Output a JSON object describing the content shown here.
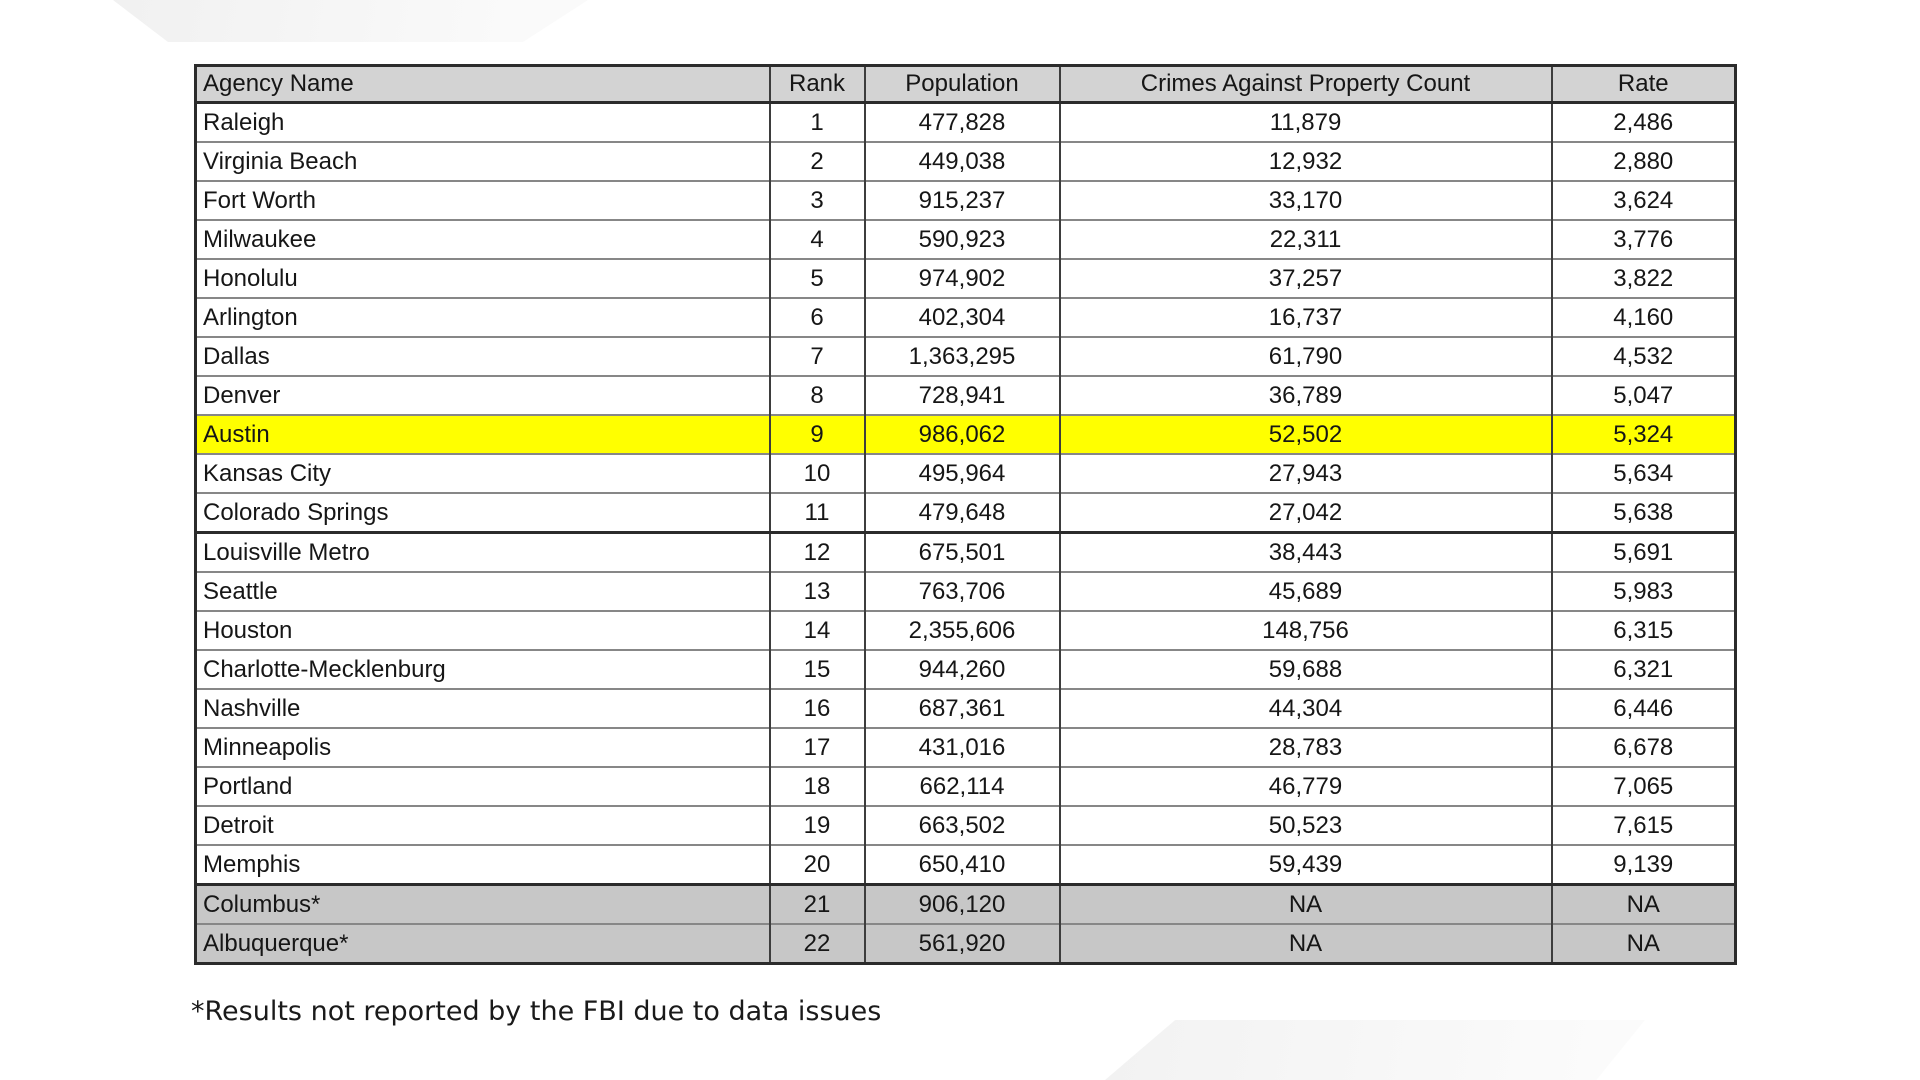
{
  "chart_data": {
    "type": "table",
    "columns": [
      "Agency Name",
      "Rank",
      "Population",
      "Crimes Against Property Count",
      "Rate"
    ],
    "rows": [
      {
        "agency": "Raleigh",
        "rank": "1",
        "population": "477,828",
        "crimes": "11,879",
        "rate": "2,486",
        "style": "normal"
      },
      {
        "agency": "Virginia Beach",
        "rank": "2",
        "population": "449,038",
        "crimes": "12,932",
        "rate": "2,880",
        "style": "normal"
      },
      {
        "agency": "Fort Worth",
        "rank": "3",
        "population": "915,237",
        "crimes": "33,170",
        "rate": "3,624",
        "style": "normal"
      },
      {
        "agency": "Milwaukee",
        "rank": "4",
        "population": "590,923",
        "crimes": "22,311",
        "rate": "3,776",
        "style": "normal"
      },
      {
        "agency": "Honolulu",
        "rank": "5",
        "population": "974,902",
        "crimes": "37,257",
        "rate": "3,822",
        "style": "normal"
      },
      {
        "agency": "Arlington",
        "rank": "6",
        "population": "402,304",
        "crimes": "16,737",
        "rate": "4,160",
        "style": "normal"
      },
      {
        "agency": "Dallas",
        "rank": "7",
        "population": "1,363,295",
        "crimes": "61,790",
        "rate": "4,532",
        "style": "normal"
      },
      {
        "agency": "Denver",
        "rank": "8",
        "population": "728,941",
        "crimes": "36,789",
        "rate": "5,047",
        "style": "normal"
      },
      {
        "agency": "Austin",
        "rank": "9",
        "population": "986,062",
        "crimes": "52,502",
        "rate": "5,324",
        "style": "highlight"
      },
      {
        "agency": "Kansas City",
        "rank": "10",
        "population": "495,964",
        "crimes": "27,943",
        "rate": "5,634",
        "style": "normal"
      },
      {
        "agency": "Colorado Springs",
        "rank": "11",
        "population": "479,648",
        "crimes": "27,042",
        "rate": "5,638",
        "style": "normal"
      },
      {
        "agency": "Louisville Metro",
        "rank": "12",
        "population": "675,501",
        "crimes": "38,443",
        "rate": "5,691",
        "style": "normal",
        "thick_top": true
      },
      {
        "agency": "Seattle",
        "rank": "13",
        "population": "763,706",
        "crimes": "45,689",
        "rate": "5,983",
        "style": "normal"
      },
      {
        "agency": "Houston",
        "rank": "14",
        "population": "2,355,606",
        "crimes": "148,756",
        "rate": "6,315",
        "style": "normal"
      },
      {
        "agency": "Charlotte-Mecklenburg",
        "rank": "15",
        "population": "944,260",
        "crimes": "59,688",
        "rate": "6,321",
        "style": "normal"
      },
      {
        "agency": "Nashville",
        "rank": "16",
        "population": "687,361",
        "crimes": "44,304",
        "rate": "6,446",
        "style": "normal"
      },
      {
        "agency": "Minneapolis",
        "rank": "17",
        "population": "431,016",
        "crimes": "28,783",
        "rate": "6,678",
        "style": "normal"
      },
      {
        "agency": "Portland",
        "rank": "18",
        "population": "662,114",
        "crimes": "46,779",
        "rate": "7,065",
        "style": "normal"
      },
      {
        "agency": "Detroit",
        "rank": "19",
        "population": "663,502",
        "crimes": "50,523",
        "rate": "7,615",
        "style": "normal"
      },
      {
        "agency": "Memphis",
        "rank": "20",
        "population": "650,410",
        "crimes": "59,439",
        "rate": "9,139",
        "style": "normal"
      },
      {
        "agency": "Columbus*",
        "rank": "21",
        "population": "906,120",
        "crimes": "NA",
        "rate": "NA",
        "style": "na",
        "thick_top": true
      },
      {
        "agency": "Albuquerque*",
        "rank": "22",
        "population": "561,920",
        "crimes": "NA",
        "rate": "NA",
        "style": "na"
      }
    ],
    "highlighted_row": "Austin",
    "na_rows": [
      "Columbus*",
      "Albuquerque*"
    ]
  },
  "footnote": "*Results not reported by the FBI due to data issues",
  "colors": {
    "highlight_row": "#ffff00",
    "header_bg": "#d3d3d3",
    "na_row_bg": "#c7c7c7",
    "border_dark": "#2b2b2b",
    "border_light": "#878787"
  }
}
